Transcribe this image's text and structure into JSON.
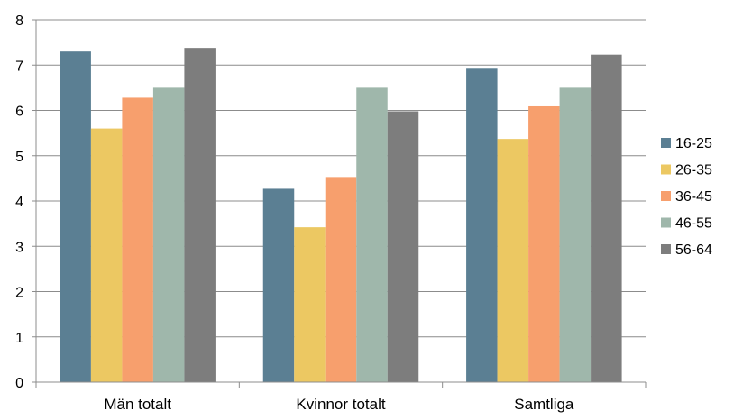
{
  "chart_data": {
    "type": "bar",
    "title": "",
    "xlabel": "",
    "ylabel": "",
    "ylim": [
      0,
      8
    ],
    "yticks": [
      0,
      1,
      2,
      3,
      4,
      5,
      6,
      7,
      8
    ],
    "grid": true,
    "legend_position": "right",
    "categories": [
      "Män totalt",
      "Kvinnor totalt",
      "Samtliga"
    ],
    "series": [
      {
        "name": "16-25",
        "color": "#5b7f93",
        "values": [
          7.3,
          4.27,
          6.92
        ]
      },
      {
        "name": "26-35",
        "color": "#ecc862",
        "values": [
          5.6,
          3.42,
          5.37
        ]
      },
      {
        "name": "36-45",
        "color": "#f79f6d",
        "values": [
          6.28,
          4.53,
          6.09
        ]
      },
      {
        "name": "46-55",
        "color": "#9fb7ab",
        "values": [
          6.5,
          6.5,
          6.5
        ]
      },
      {
        "name": "56-64",
        "color": "#7d7d7d",
        "values": [
          7.38,
          5.98,
          7.23
        ]
      }
    ]
  }
}
